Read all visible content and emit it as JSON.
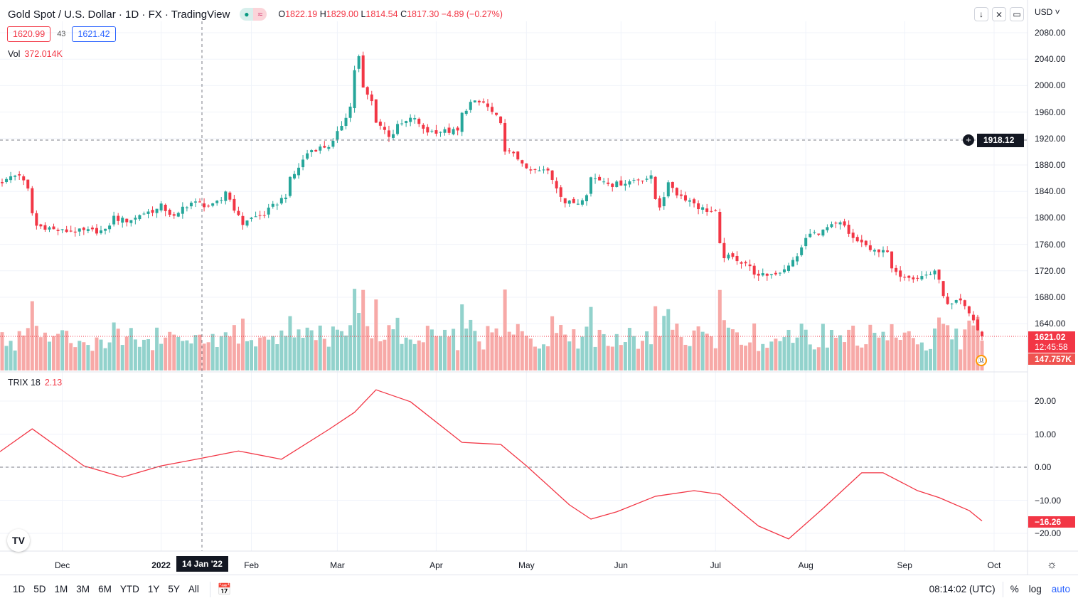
{
  "header": {
    "title": "Gold Spot / U.S. Dollar · 1D · FX · TradingView",
    "status_icons": [
      "market-open-dot-icon",
      "approx-icon"
    ],
    "ohlc": {
      "o_label": "O",
      "o": "1822.19",
      "h_label": "H",
      "h": "1829.00",
      "l_label": "L",
      "l": "1814.54",
      "c_label": "C",
      "c": "1817.30",
      "change": "−4.89 (−0.27%)"
    },
    "sell": "1620.99",
    "spread": "43",
    "buy": "1621.42",
    "vol_label": "Vol",
    "vol_value": "372.014K",
    "trix_label": "TRIX 18",
    "trix_value": "2.13"
  },
  "toolbar": {
    "currency": "USD"
  },
  "price_axis": {
    "ticks": [
      "2080.00",
      "2040.00",
      "2000.00",
      "1960.00",
      "1920.00",
      "1880.00",
      "1840.00",
      "1800.00",
      "1760.00",
      "1720.00",
      "1680.00",
      "1640.00"
    ],
    "crosshair_price": "1918.12",
    "last_price": "1621.02",
    "countdown": "12:45:58",
    "last_volume": "147.757K"
  },
  "trix_axis": {
    "ticks": [
      "20.00",
      "10.00",
      "0.00",
      "−10.00",
      "−20.00"
    ],
    "last": "−16.26"
  },
  "time_axis": {
    "labels": [
      "Dec",
      "2022",
      "Feb",
      "Mar",
      "Apr",
      "May",
      "Jun",
      "Jul",
      "Aug",
      "Sep",
      "Oct"
    ],
    "crosshair_date": "14 Jan '22"
  },
  "bottom": {
    "ranges": [
      "1D",
      "5D",
      "1M",
      "3M",
      "6M",
      "YTD",
      "1Y",
      "5Y",
      "All"
    ],
    "time": "08:14:02 (UTC)",
    "percent": "%",
    "log": "log",
    "auto": "auto"
  },
  "colors": {
    "up": "#26a69a",
    "down": "#f23645",
    "trix": "#f23645",
    "vol_up": "#92d2cc",
    "vol_down": "#f7a9a7"
  },
  "chart_data": [
    {
      "type": "candlestick",
      "title": "Gold Spot / U.S. Dollar",
      "interval": "1D",
      "ylim": [
        1620,
        2090
      ],
      "grid": true,
      "close_path": [
        [
          "2021-11-11",
          1855
        ],
        [
          "2021-11-17",
          1866
        ],
        [
          "2021-11-22",
          1807
        ],
        [
          "2021-11-23",
          1788
        ],
        [
          "2021-12-01",
          1780
        ],
        [
          "2021-12-15",
          1780
        ],
        [
          "2021-12-17",
          1801
        ],
        [
          "2021-12-22",
          1796
        ],
        [
          "2021-12-29",
          1809
        ],
        [
          "2022-01-03",
          1818
        ],
        [
          "2022-01-06",
          1801
        ],
        [
          "2022-01-12",
          1823
        ],
        [
          "2022-01-19",
          1818
        ],
        [
          "2022-01-24",
          1841
        ],
        [
          "2022-01-27",
          1801
        ],
        [
          "2022-01-28",
          1791
        ],
        [
          "2022-02-07",
          1812
        ],
        [
          "2022-02-11",
          1834
        ],
        [
          "2022-02-15",
          1866
        ],
        [
          "2022-02-18",
          1898
        ],
        [
          "2022-02-28",
          1914
        ],
        [
          "2022-03-04",
          1968
        ],
        [
          "2022-03-08",
          2043
        ],
        [
          "2022-03-09",
          1995
        ],
        [
          "2022-03-14",
          1947
        ],
        [
          "2022-03-17",
          1925
        ],
        [
          "2022-03-25",
          1952
        ],
        [
          "2022-03-30",
          1931
        ],
        [
          "2022-04-08",
          1931
        ],
        [
          "2022-04-13",
          1974
        ],
        [
          "2022-04-18",
          1974
        ],
        [
          "2022-04-21",
          1952
        ],
        [
          "2022-04-25",
          1904
        ],
        [
          "2022-05-02",
          1871
        ],
        [
          "2022-05-09",
          1871
        ],
        [
          "2022-05-13",
          1823
        ],
        [
          "2022-05-18",
          1823
        ],
        [
          "2022-05-23",
          1861
        ],
        [
          "2022-05-30",
          1850
        ],
        [
          "2022-06-03",
          1855
        ],
        [
          "2022-06-10",
          1861
        ],
        [
          "2022-06-14",
          1818
        ],
        [
          "2022-06-16",
          1850
        ],
        [
          "2022-06-24",
          1823
        ],
        [
          "2022-07-01",
          1807
        ],
        [
          "2022-07-05",
          1742
        ],
        [
          "2022-07-12",
          1732
        ],
        [
          "2022-07-15",
          1710
        ],
        [
          "2022-07-20",
          1715
        ],
        [
          "2022-07-26",
          1726
        ],
        [
          "2022-07-29",
          1753
        ],
        [
          "2022-08-02",
          1775
        ],
        [
          "2022-08-08",
          1785
        ],
        [
          "2022-08-11",
          1791
        ],
        [
          "2022-08-16",
          1769
        ],
        [
          "2022-08-22",
          1748
        ],
        [
          "2022-08-25",
          1753
        ],
        [
          "2022-08-30",
          1715
        ],
        [
          "2022-09-06",
          1710
        ],
        [
          "2022-09-12",
          1721
        ],
        [
          "2022-09-15",
          1667
        ],
        [
          "2022-09-20",
          1673
        ],
        [
          "2022-09-23",
          1646
        ],
        [
          "2022-09-26",
          1630
        ],
        [
          "2022-09-27",
          1621.02
        ]
      ]
    },
    {
      "type": "line",
      "title": "TRIX 18",
      "ylim": [
        -25,
        27
      ],
      "points": [
        [
          "2021-11-10",
          4.7
        ],
        [
          "2021-11-22",
          11.6
        ],
        [
          "2021-12-08",
          0.4
        ],
        [
          "2021-12-21",
          -3.0
        ],
        [
          "2022-01-03",
          0.4
        ],
        [
          "2022-01-14",
          2.6
        ],
        [
          "2022-01-27",
          4.9
        ],
        [
          "2022-02-10",
          2.4
        ],
        [
          "2022-02-25",
          11.4
        ],
        [
          "2022-03-07",
          16.6
        ],
        [
          "2022-03-14",
          23.4
        ],
        [
          "2022-03-24",
          19.8
        ],
        [
          "2022-04-11",
          7.5
        ],
        [
          "2022-04-22",
          6.9
        ],
        [
          "2022-05-02",
          0.4
        ],
        [
          "2022-05-16",
          -11.4
        ],
        [
          "2022-05-23",
          -15.7
        ],
        [
          "2022-05-31",
          -13.5
        ],
        [
          "2022-06-13",
          -8.8
        ],
        [
          "2022-06-24",
          -7.1
        ],
        [
          "2022-07-04",
          -8.2
        ],
        [
          "2022-07-15",
          -17.8
        ],
        [
          "2022-07-26",
          -21.7
        ],
        [
          "2022-08-05",
          -12.5
        ],
        [
          "2022-08-18",
          -1.7
        ],
        [
          "2022-08-25",
          -1.7
        ],
        [
          "2022-09-06",
          -7.1
        ],
        [
          "2022-09-13",
          -9.2
        ],
        [
          "2022-09-22",
          -13.1
        ],
        [
          "2022-09-27",
          -16.26
        ]
      ]
    }
  ]
}
